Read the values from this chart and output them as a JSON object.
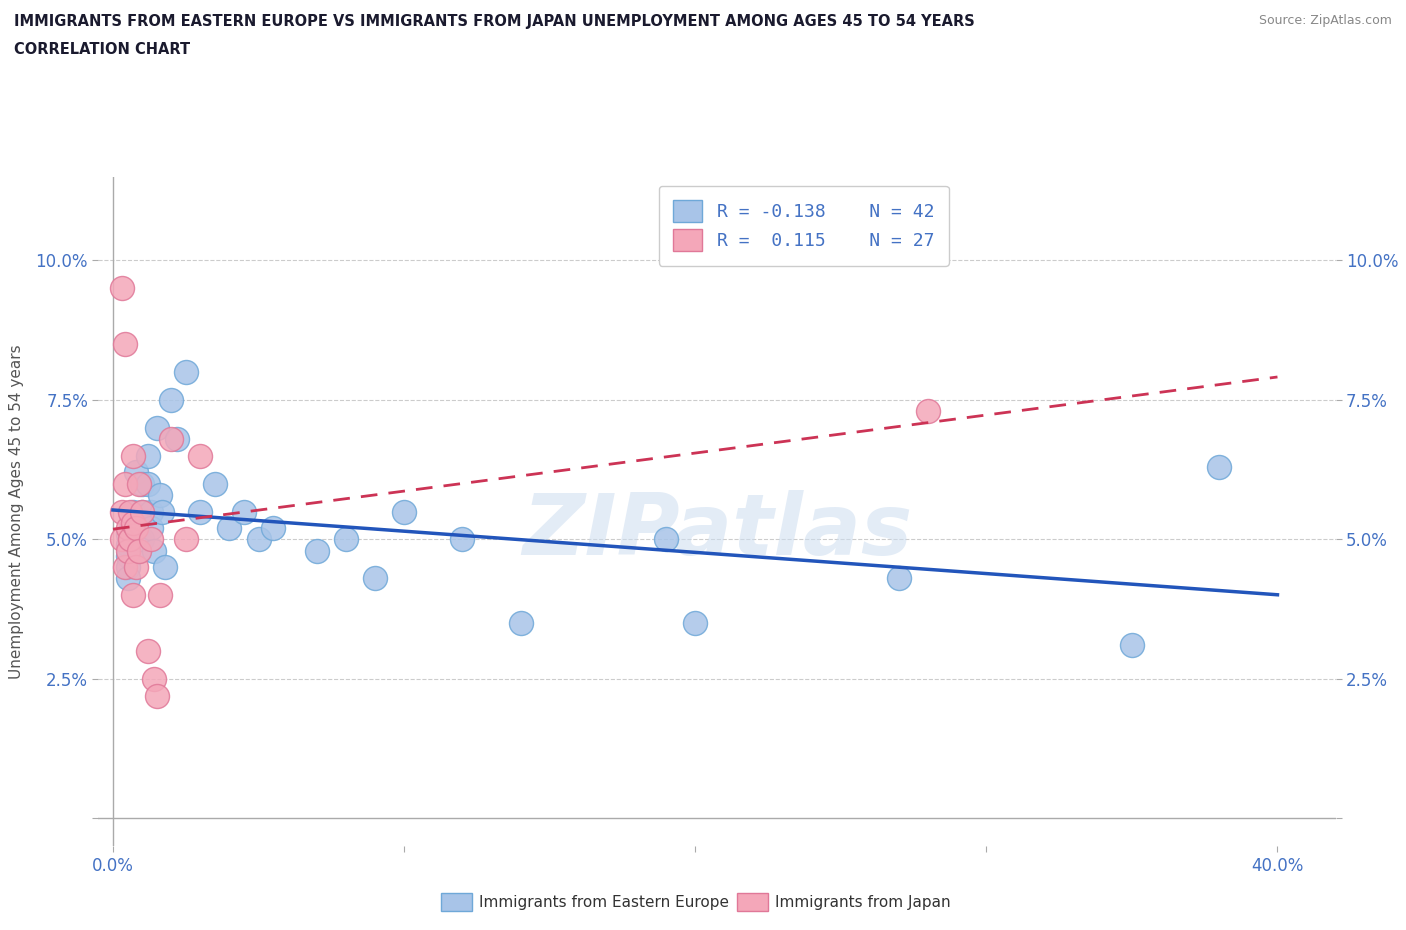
{
  "title_line1": "IMMIGRANTS FROM EASTERN EUROPE VS IMMIGRANTS FROM JAPAN UNEMPLOYMENT AMONG AGES 45 TO 54 YEARS",
  "title_line2": "CORRELATION CHART",
  "source_text": "Source: ZipAtlas.com",
  "ylabel": "Unemployment Among Ages 45 to 54 years",
  "watermark": "ZIPatlas",
  "legend_label_blue": "Immigrants from Eastern Europe",
  "legend_label_pink": "Immigrants from Japan",
  "R_blue": -0.138,
  "N_blue": 42,
  "R_pink": 0.115,
  "N_pink": 27,
  "xlim": [
    -0.005,
    0.42
  ],
  "ylim": [
    -0.005,
    0.115
  ],
  "xticks": [
    0.0,
    0.1,
    0.2,
    0.3,
    0.4
  ],
  "xtick_labels": [
    "0.0%",
    "",
    "",
    "",
    "40.0%"
  ],
  "yticks": [
    0.0,
    0.025,
    0.05,
    0.075,
    0.1
  ],
  "ytick_labels": [
    "",
    "2.5%",
    "5.0%",
    "7.5%",
    "10.0%"
  ],
  "blue_scatter_color": "#a8c4e8",
  "pink_scatter_color": "#f4a7b9",
  "blue_edge_color": "#6fa8d8",
  "pink_edge_color": "#e07898",
  "blue_line_color": "#2255bb",
  "pink_line_color": "#cc3355",
  "axis_tick_color": "#4472c4",
  "title_color": "#1a1a2e",
  "grid_color": "#cccccc",
  "blue_x": [
    0.005,
    0.005,
    0.005,
    0.005,
    0.005,
    0.007,
    0.007,
    0.008,
    0.009,
    0.009,
    0.01,
    0.01,
    0.01,
    0.012,
    0.012,
    0.013,
    0.013,
    0.014,
    0.015,
    0.016,
    0.017,
    0.018,
    0.02,
    0.022,
    0.025,
    0.03,
    0.035,
    0.04,
    0.045,
    0.05,
    0.055,
    0.07,
    0.08,
    0.09,
    0.1,
    0.12,
    0.14,
    0.19,
    0.2,
    0.27,
    0.35,
    0.38
  ],
  "blue_y": [
    0.051,
    0.049,
    0.047,
    0.045,
    0.043,
    0.055,
    0.052,
    0.062,
    0.05,
    0.048,
    0.06,
    0.055,
    0.05,
    0.065,
    0.06,
    0.055,
    0.052,
    0.048,
    0.07,
    0.058,
    0.055,
    0.045,
    0.075,
    0.068,
    0.08,
    0.055,
    0.06,
    0.052,
    0.055,
    0.05,
    0.052,
    0.048,
    0.05,
    0.043,
    0.055,
    0.05,
    0.035,
    0.05,
    0.035,
    0.043,
    0.031,
    0.063
  ],
  "pink_x": [
    0.003,
    0.003,
    0.003,
    0.004,
    0.004,
    0.004,
    0.005,
    0.005,
    0.006,
    0.006,
    0.007,
    0.007,
    0.007,
    0.008,
    0.008,
    0.009,
    0.009,
    0.01,
    0.012,
    0.013,
    0.014,
    0.015,
    0.016,
    0.02,
    0.025,
    0.03,
    0.28
  ],
  "pink_y": [
    0.095,
    0.055,
    0.05,
    0.085,
    0.06,
    0.045,
    0.052,
    0.048,
    0.055,
    0.05,
    0.065,
    0.053,
    0.04,
    0.052,
    0.045,
    0.06,
    0.048,
    0.055,
    0.03,
    0.05,
    0.025,
    0.022,
    0.04,
    0.068,
    0.05,
    0.065,
    0.073
  ]
}
